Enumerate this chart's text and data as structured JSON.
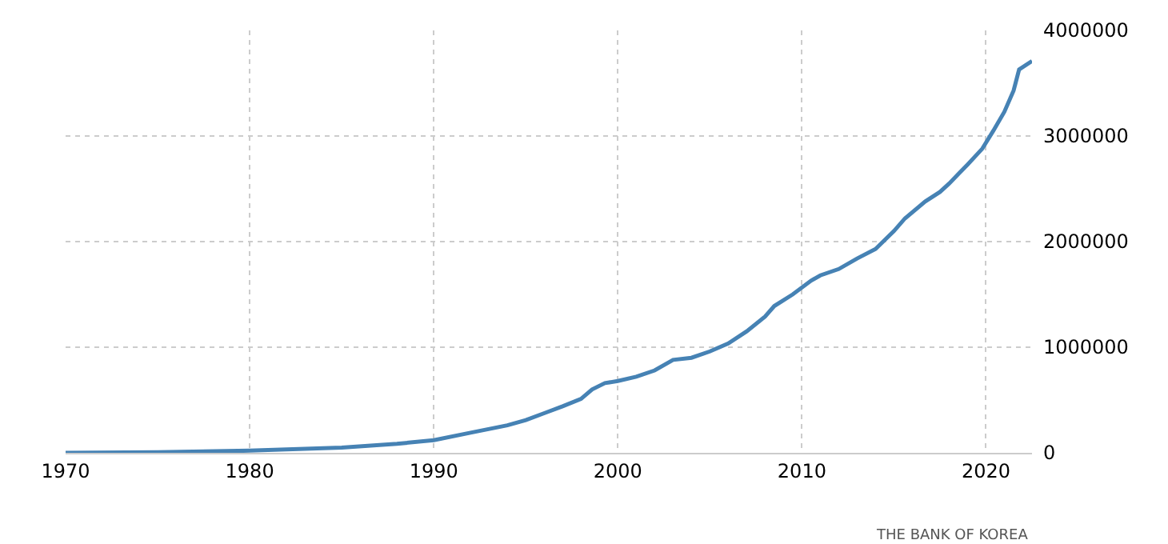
{
  "chart_data": {
    "type": "line",
    "x": [
      1970,
      1975,
      1980,
      1985,
      1988,
      1990,
      1992,
      1994,
      1995,
      1996,
      1997,
      1998,
      1998.6,
      1999.3,
      2000,
      2001,
      2002,
      2003,
      2004,
      2005,
      2006,
      2007,
      2008,
      2008.5,
      2009.5,
      2010.5,
      2011,
      2012,
      2013,
      2014,
      2015,
      2015.6,
      2016.7,
      2017.5,
      2018,
      2018.5,
      2019,
      2019.8,
      2020.4,
      2021,
      2021.5,
      2021.8,
      2022.5
    ],
    "series": [
      {
        "color": "#4682b4",
        "values": [
          0,
          5000,
          20000,
          50000,
          85000,
          120000,
          190000,
          260000,
          310000,
          375000,
          440000,
          510000,
          600000,
          660000,
          680000,
          720000,
          780000,
          880000,
          900000,
          960000,
          1035000,
          1150000,
          1290000,
          1390000,
          1500000,
          1630000,
          1680000,
          1740000,
          1840000,
          1930000,
          2100000,
          2220000,
          2380000,
          2470000,
          2550000,
          2640000,
          2730000,
          2880000,
          3050000,
          3230000,
          3430000,
          3630000,
          3710000
        ]
      }
    ],
    "xlim": [
      1970,
      2022.5
    ],
    "xticks": [
      1970,
      1980,
      1990,
      2000,
      2010,
      2020
    ],
    "ylim": [
      0,
      4000000
    ],
    "yticks": [
      0,
      1000000,
      2000000,
      3000000,
      4000000
    ],
    "grid": true,
    "line_style": "solid",
    "marker": "none",
    "annotations": [
      "THE BANK OF KOREA"
    ]
  }
}
